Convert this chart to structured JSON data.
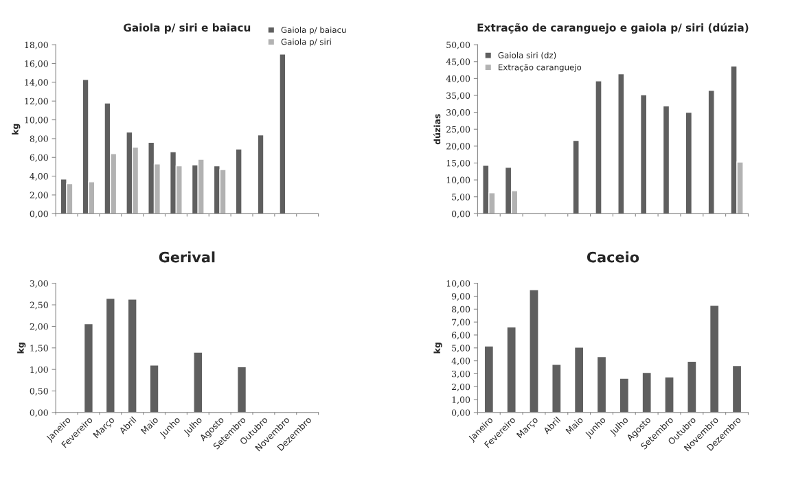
{
  "chart_data": [
    {
      "type": "bar",
      "title": "Gaiola p/ siri e baiacu",
      "ylabel": "kg",
      "categories": [
        null,
        null,
        null,
        null,
        null,
        null,
        null,
        null,
        null,
        null,
        null,
        null
      ],
      "series": [
        {
          "name": "Gaiola p/ baiacu",
          "color": "#5f5f5f",
          "values": [
            3.7,
            14.3,
            11.8,
            8.7,
            7.6,
            6.6,
            5.2,
            5.1,
            6.9,
            8.4,
            17.0,
            null
          ]
        },
        {
          "name": "Gaiola p/ siri",
          "color": "#b2b2b2",
          "values": [
            3.2,
            3.4,
            6.4,
            7.1,
            5.3,
            5.1,
            5.8,
            4.7,
            null,
            null,
            null,
            null
          ]
        }
      ],
      "ylim": [
        0,
        18
      ],
      "yticks": [
        {
          "value": 0,
          "label": "0,00"
        },
        {
          "value": 2,
          "label": "2,00"
        },
        {
          "value": 4,
          "label": "4,00"
        },
        {
          "value": 6,
          "label": "6,00"
        },
        {
          "value": 8,
          "label": "8,00"
        },
        {
          "value": 10,
          "label": "10,00"
        },
        {
          "value": 12,
          "label": "12,00"
        },
        {
          "value": 14,
          "label": "14,00"
        },
        {
          "value": 16,
          "label": "16,00"
        },
        {
          "value": 18,
          "label": "18,00"
        }
      ],
      "legend": "top right",
      "tick_labels": "y"
    },
    {
      "type": "bar",
      "title": "Extração de caranguejo e gaiola p/ siri (dúzia)",
      "ylabel": "dúzias",
      "categories": [
        null,
        null,
        null,
        null,
        null,
        null,
        null,
        null,
        null,
        null,
        null,
        null
      ],
      "series": [
        {
          "name": "Gaiola siri (dz)",
          "color": "#5f5f5f",
          "values": [
            14.3,
            13.7,
            null,
            null,
            21.7,
            39.3,
            41.4,
            35.2,
            31.9,
            30.0,
            36.5,
            43.7
          ]
        },
        {
          "name": "Extração caranguejo",
          "color": "#b2b2b2",
          "values": [
            6.2,
            6.8,
            null,
            null,
            null,
            null,
            null,
            null,
            null,
            null,
            null,
            15.3
          ]
        }
      ],
      "ylim": [
        0,
        50
      ],
      "yticks": [
        {
          "value": 0,
          "label": "0,00"
        },
        {
          "value": 5,
          "label": "5,00"
        },
        {
          "value": 10,
          "label": "10,00"
        },
        {
          "value": 15,
          "label": "15,00"
        },
        {
          "value": 20,
          "label": "20,00"
        },
        {
          "value": 25,
          "label": "25,00"
        },
        {
          "value": 30,
          "label": "30,00"
        },
        {
          "value": 35,
          "label": "35,00"
        },
        {
          "value": 40,
          "label": "40,00"
        },
        {
          "value": 45,
          "label": "45,00"
        },
        {
          "value": 50,
          "label": "50,00"
        }
      ],
      "legend": "top left",
      "tick_labels": "y"
    },
    {
      "type": "bar",
      "title": "Gerival",
      "ylabel": "kg",
      "categories": [
        "Janeiro",
        "Fevereiro",
        "Março",
        "Abril",
        "Maio",
        "Junho",
        "Julho",
        "Agosto",
        "Setembro",
        "Outubro",
        "Novembro",
        "Dezembro"
      ],
      "series": [
        {
          "color": "#5f5f5f",
          "values": [
            null,
            2.06,
            2.65,
            2.63,
            1.1,
            null,
            1.4,
            null,
            1.06,
            null,
            null,
            null
          ]
        }
      ],
      "ylim": [
        0,
        3
      ],
      "yticks": [
        {
          "value": 0,
          "label": "0,00"
        },
        {
          "value": 0.5,
          "label": "0,50"
        },
        {
          "value": 1,
          "label": "1,00"
        },
        {
          "value": 1.5,
          "label": "1,50"
        },
        {
          "value": 2,
          "label": "2,00"
        },
        {
          "value": 2.5,
          "label": "2,50"
        },
        {
          "value": 3,
          "label": "3,00"
        }
      ]
    },
    {
      "type": "bar",
      "title": "Caceio",
      "ylabel": "kg",
      "categories": [
        "Janeiro",
        "Fevereiro",
        "Março",
        "Abril",
        "Maio",
        "Junho",
        "Julho",
        "Agosto",
        "Setembro",
        "Outubro",
        "Novembro",
        "Dezembro"
      ],
      "series": [
        {
          "color": "#5f5f5f",
          "values": [
            5.15,
            6.62,
            9.5,
            3.73,
            5.05,
            4.32,
            2.65,
            3.1,
            2.75,
            3.97,
            8.3,
            3.63
          ]
        }
      ],
      "ylim": [
        0,
        10
      ],
      "yticks": [
        {
          "value": 0,
          "label": "0,00"
        },
        {
          "value": 1,
          "label": "1,00"
        },
        {
          "value": 2,
          "label": "2,00"
        },
        {
          "value": 3,
          "label": "3,00"
        },
        {
          "value": 4,
          "label": "4,00"
        },
        {
          "value": 5,
          "label": "5,00"
        },
        {
          "value": 6,
          "label": "6,00"
        },
        {
          "value": 7,
          "label": "7,00"
        },
        {
          "value": 8,
          "label": "8,00"
        },
        {
          "value": 9,
          "label": "9,00"
        },
        {
          "value": 10,
          "label": "10,00"
        }
      ]
    }
  ]
}
